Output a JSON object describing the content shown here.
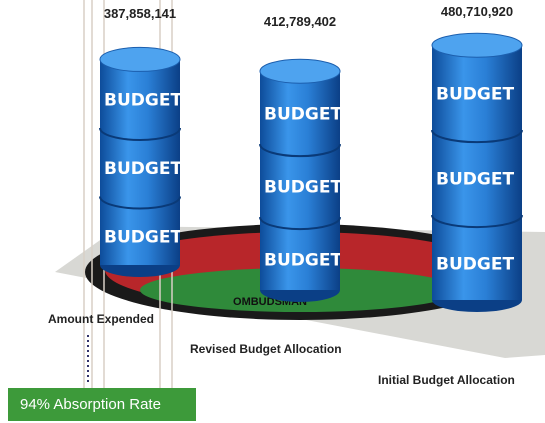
{
  "chart_data": {
    "type": "bar",
    "categories": [
      "Amount Expended",
      "Revised Budget Allocation",
      "Initial Budget Allocation"
    ],
    "values": [
      387858141,
      412789402,
      480710920
    ],
    "value_labels": [
      "387,858,141",
      "412,789,402",
      "480,710,920"
    ],
    "color": "#2a7fd6",
    "bar_text": "BUDGET",
    "emblem_text": "OMBUDSMAN",
    "annotation": "94% Absorption Rate"
  }
}
